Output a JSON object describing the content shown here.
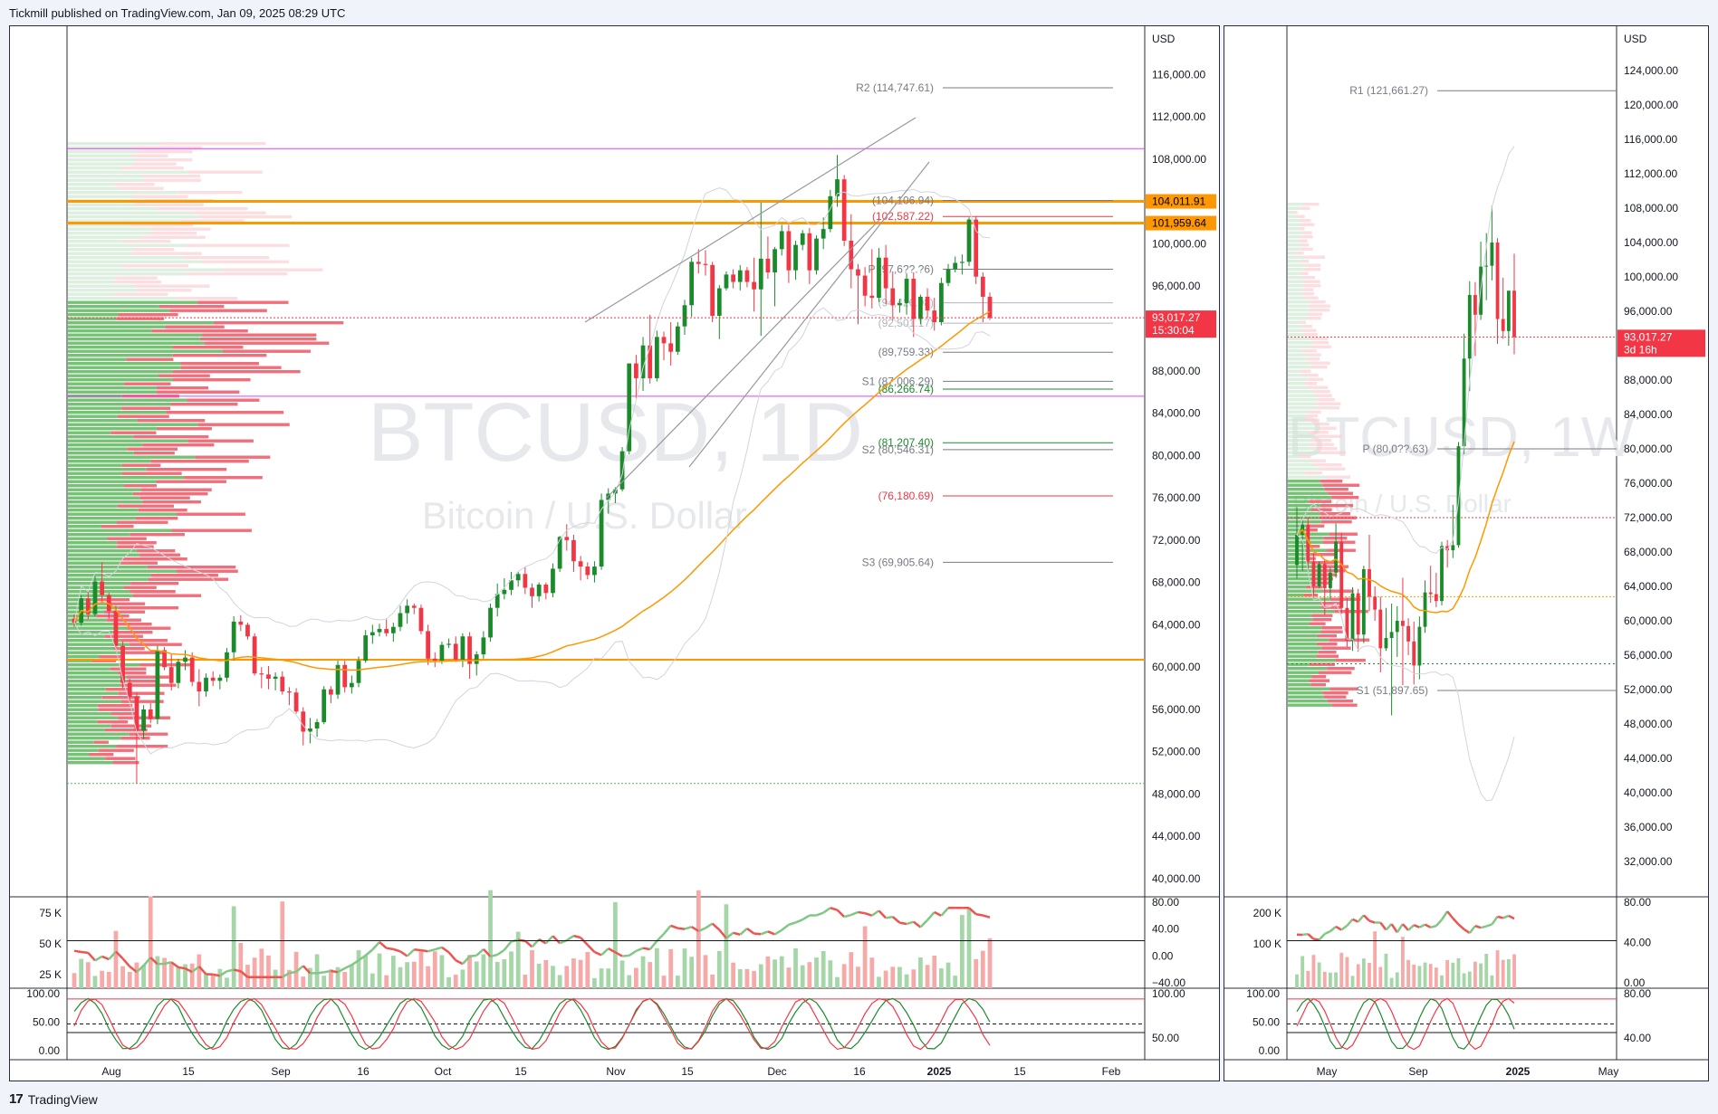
{
  "header": {
    "published": "Tickmill published on TradingView.com, Jan 09, 2025 08:29 UTC"
  },
  "footer": {
    "brand": "TradingView",
    "logo_glyph": "17"
  },
  "colors": {
    "up": "#26a69a",
    "green_candle": "#1b8a2b",
    "down": "#f23645",
    "orange": "#ff9800",
    "pivot_gray": "#787b86",
    "magenta": "#e040fb"
  },
  "chart_data": [
    {
      "type": "candlestick",
      "symbol": "BTCUSD, 1D",
      "name": "Bitcoin / U.S. Dollar",
      "currency": "USD",
      "ylim": [
        40000,
        118000
      ],
      "y_ticks": [
        "40,000.00",
        "44,000.00",
        "48,000.00",
        "52,000.00",
        "56,000.00",
        "60,000.00",
        "64,000.00",
        "68,000.00",
        "72,000.00",
        "76,000.00",
        "80,000.00",
        "84,000.00",
        "88,000.00",
        "92,000.00",
        "96,000.00",
        "100,000.00",
        "104,000.00",
        "108,000.00",
        "112,000.00",
        "116,000.00"
      ],
      "x_ticks": [
        "Aug",
        "15",
        "Sep",
        "16",
        "Oct",
        "15",
        "Nov",
        "15",
        "Dec",
        "16",
        "2025",
        "15",
        "Feb"
      ],
      "x_tick_bold": "2025",
      "pivot_levels": [
        {
          "label": "R2 (114,747.61)",
          "value": 114747.61,
          "color": "#787b86"
        },
        {
          "label": "(104,106.94)",
          "value": 104106.94,
          "color": "#787b86"
        },
        {
          "label": "(102,587.22)",
          "value": 102587.22,
          "color": "#f23645"
        },
        {
          "label": "P (97,6??.?6)",
          "value": 97600,
          "color": "#787b86"
        },
        {
          "label": "(94,426.98)",
          "value": 94426.98,
          "color": "#b2b5be"
        },
        {
          "label": "(92,501.17)",
          "value": 92501.17,
          "color": "#b2b5be"
        },
        {
          "label": "(89,759.33)",
          "value": 89759.33,
          "color": "#787b86"
        },
        {
          "label": "S1 (87,006.29)",
          "value": 87006.29,
          "color": "#787b86"
        },
        {
          "label": "(86,266.74)",
          "value": 86266.74,
          "color": "#1b8a2b"
        },
        {
          "label": "(81,207.40)",
          "value": 81207.4,
          "color": "#1b8a2b"
        },
        {
          "label": "S2 (80,546.31)",
          "value": 80546.31,
          "color": "#787b86"
        },
        {
          "label": "(76,180.69)",
          "value": 76180.69,
          "color": "#f23645"
        },
        {
          "label": "S3 (69,905.64)",
          "value": 69905.64,
          "color": "#787b86"
        }
      ],
      "price_badges": [
        {
          "text": "104,011.91",
          "value": 104011.91,
          "bg": "#ff9800",
          "fg": "#000000"
        },
        {
          "text": "101,959.64",
          "value": 101959.64,
          "bg": "#ff9800",
          "fg": "#000000"
        },
        {
          "text": "93,017.27",
          "sub": "15:30:04",
          "value": 93017.27,
          "bg": "#f23645",
          "fg": "#ffffff"
        }
      ],
      "candles": [
        [
          64.6,
          65.0,
          63.8,
          64.2
        ],
        [
          64.2,
          66.8,
          63.9,
          66.5
        ],
        [
          66.5,
          67.2,
          64.5,
          65.0
        ],
        [
          65.0,
          68.6,
          64.8,
          68.1
        ],
        [
          68.1,
          69.9,
          66.2,
          66.8
        ],
        [
          66.8,
          67.0,
          64.6,
          65.3
        ],
        [
          65.3,
          65.8,
          61.7,
          62.0
        ],
        [
          62.0,
          62.4,
          58.0,
          58.5
        ],
        [
          58.5,
          58.9,
          56.8,
          57.2
        ],
        [
          57.2,
          57.6,
          49.0,
          54.0
        ],
        [
          54.0,
          56.4,
          53.2,
          56.0
        ],
        [
          56.0,
          56.6,
          54.7,
          55.1
        ],
        [
          55.1,
          62.0,
          54.6,
          61.6
        ],
        [
          61.6,
          61.9,
          59.7,
          60.0
        ],
        [
          60.0,
          61.2,
          57.8,
          58.5
        ],
        [
          58.5,
          60.8,
          58.0,
          60.5
        ],
        [
          60.5,
          61.6,
          59.7,
          60.9
        ],
        [
          60.9,
          61.4,
          58.2,
          58.6
        ],
        [
          58.6,
          59.8,
          56.3,
          57.7
        ],
        [
          57.7,
          59.4,
          57.2,
          59.0
        ],
        [
          59.0,
          59.6,
          58.2,
          58.7
        ],
        [
          58.7,
          59.3,
          57.9,
          59.0
        ],
        [
          59.0,
          61.8,
          58.6,
          61.4
        ],
        [
          61.4,
          64.8,
          60.6,
          64.3
        ],
        [
          64.3,
          64.9,
          63.4,
          64.0
        ],
        [
          64.0,
          64.2,
          62.6,
          62.9
        ],
        [
          62.9,
          63.2,
          59.2,
          59.4
        ],
        [
          59.4,
          60.0,
          58.0,
          59.3
        ],
        [
          59.3,
          60.1,
          57.9,
          58.9
        ],
        [
          58.9,
          59.5,
          57.8,
          59.1
        ],
        [
          59.1,
          59.6,
          57.4,
          57.7
        ],
        [
          57.7,
          58.1,
          56.4,
          57.6
        ],
        [
          57.6,
          58.0,
          55.6,
          55.8
        ],
        [
          55.8,
          56.2,
          52.6,
          53.9
        ],
        [
          53.9,
          55.2,
          52.8,
          54.2
        ],
        [
          54.2,
          55.1,
          53.4,
          54.8
        ],
        [
          54.8,
          58.2,
          54.6,
          57.9
        ],
        [
          57.9,
          58.2,
          56.6,
          57.4
        ],
        [
          57.4,
          60.6,
          57.0,
          60.2
        ],
        [
          60.2,
          60.6,
          57.6,
          58.1
        ],
        [
          58.1,
          59.2,
          57.5,
          58.5
        ],
        [
          58.5,
          61.0,
          58.1,
          60.6
        ],
        [
          60.6,
          63.5,
          60.4,
          63.0
        ],
        [
          63.0,
          64.0,
          62.2,
          63.3
        ],
        [
          63.3,
          64.1,
          62.9,
          63.6
        ],
        [
          63.6,
          64.6,
          62.9,
          63.2
        ],
        [
          63.2,
          64.2,
          62.4,
          63.8
        ],
        [
          63.8,
          65.8,
          63.4,
          65.1
        ],
        [
          65.1,
          66.4,
          64.1,
          65.8
        ],
        [
          65.8,
          66.0,
          65.0,
          65.6
        ],
        [
          65.6,
          65.9,
          63.1,
          63.4
        ],
        [
          63.4,
          64.0,
          60.2,
          60.8
        ],
        [
          60.8,
          61.4,
          60.0,
          60.6
        ],
        [
          60.6,
          62.4,
          60.3,
          62.1
        ],
        [
          62.1,
          62.7,
          61.8,
          62.2
        ],
        [
          62.2,
          62.9,
          60.5,
          60.7
        ],
        [
          60.7,
          63.2,
          60.0,
          62.9
        ],
        [
          62.9,
          63.3,
          58.9,
          60.3
        ],
        [
          60.3,
          61.5,
          59.2,
          61.2
        ],
        [
          61.2,
          63.4,
          60.8,
          62.8
        ],
        [
          62.8,
          66.0,
          62.4,
          65.6
        ],
        [
          65.6,
          67.9,
          64.8,
          66.9
        ],
        [
          66.9,
          68.4,
          66.4,
          67.3
        ],
        [
          67.3,
          69.0,
          66.8,
          68.2
        ],
        [
          68.2,
          69.0,
          67.6,
          68.8
        ],
        [
          68.8,
          69.5,
          66.9,
          67.5
        ],
        [
          67.5,
          67.9,
          65.6,
          66.7
        ],
        [
          66.7,
          68.0,
          66.2,
          67.8
        ],
        [
          67.8,
          68.0,
          66.4,
          67.0
        ],
        [
          67.0,
          69.8,
          66.6,
          69.3
        ],
        [
          69.3,
          72.4,
          69.0,
          72.3
        ],
        [
          72.3,
          73.5,
          71.0,
          72.0
        ],
        [
          72.0,
          72.5,
          69.0,
          70.0
        ],
        [
          70.0,
          70.5,
          68.2,
          69.5
        ],
        [
          69.5,
          69.9,
          68.3,
          68.7
        ],
        [
          68.7,
          70.0,
          68.0,
          69.5
        ],
        [
          69.5,
          76.4,
          69.2,
          75.8
        ],
        [
          75.8,
          76.9,
          74.5,
          76.4
        ],
        [
          76.4,
          77.0,
          75.5,
          76.8
        ],
        [
          76.8,
          80.8,
          76.6,
          80.4
        ],
        [
          80.4,
          88.5,
          80.1,
          88.7
        ],
        [
          88.7,
          89.5,
          85.4,
          87.3
        ],
        [
          87.3,
          91.2,
          86.1,
          90.4
        ],
        [
          90.4,
          93.3,
          86.8,
          87.3
        ],
        [
          87.3,
          91.8,
          87.0,
          91.2
        ],
        [
          91.2,
          91.7,
          89.0,
          90.6
        ],
        [
          90.6,
          92.6,
          88.5,
          89.8
        ],
        [
          89.8,
          92.6,
          89.5,
          92.2
        ],
        [
          92.2,
          94.7,
          91.4,
          94.2
        ],
        [
          94.2,
          98.7,
          93.1,
          98.3
        ],
        [
          98.3,
          99.5,
          97.2,
          98.1
        ],
        [
          98.1,
          99.4,
          97.0,
          98.0
        ],
        [
          98.0,
          98.3,
          92.6,
          93.2
        ],
        [
          93.2,
          96.1,
          91.0,
          95.8
        ],
        [
          95.8,
          97.4,
          95.6,
          97.1
        ],
        [
          97.1,
          97.6,
          95.8,
          96.4
        ],
        [
          96.4,
          98.0,
          95.6,
          97.5
        ],
        [
          97.5,
          97.8,
          95.9,
          96.4
        ],
        [
          96.4,
          98.7,
          93.6,
          95.7
        ],
        [
          95.7,
          103.9,
          91.3,
          98.6
        ],
        [
          98.6,
          100.7,
          96.7,
          97.3
        ],
        [
          97.3,
          99.7,
          94.1,
          99.5
        ],
        [
          99.5,
          101.8,
          98.9,
          101.2
        ],
        [
          101.2,
          101.8,
          96.3,
          97.5
        ],
        [
          97.5,
          100.3,
          96.6,
          99.9
        ],
        [
          99.9,
          101.3,
          99.4,
          101.0
        ],
        [
          101.0,
          101.5,
          96.2,
          97.5
        ],
        [
          97.5,
          100.8,
          97.1,
          100.5
        ],
        [
          100.5,
          102.5,
          99.5,
          101.4
        ],
        [
          101.4,
          105.1,
          101.1,
          104.5
        ],
        [
          104.5,
          108.4,
          103.5,
          106.1
        ],
        [
          106.1,
          106.5,
          99.8,
          100.3
        ],
        [
          100.3,
          102.8,
          95.8,
          97.6
        ],
        [
          97.6,
          98.1,
          92.4,
          97.0
        ],
        [
          97.0,
          97.8,
          94.1,
          95.1
        ],
        [
          95.1,
          99.5,
          93.9,
          94.9
        ],
        [
          94.9,
          99.6,
          94.5,
          98.7
        ],
        [
          98.7,
          99.9,
          94.3,
          95.8
        ],
        [
          95.8,
          97.4,
          92.8,
          94.2
        ],
        [
          94.2,
          94.8,
          93.5,
          94.4
        ],
        [
          94.4,
          97.2,
          93.3,
          96.7
        ],
        [
          96.7,
          97.3,
          91.2,
          92.9
        ],
        [
          92.9,
          95.2,
          92.4,
          95.0
        ],
        [
          95.0,
          95.8,
          93.0,
          93.7
        ],
        [
          93.7,
          94.9,
          91.8,
          92.6
        ],
        [
          92.6,
          96.8,
          92.3,
          96.3
        ],
        [
          96.3,
          98.1,
          96.0,
          97.6
        ],
        [
          97.6,
          98.8,
          97.3,
          98.2
        ],
        [
          98.2,
          99.0,
          97.1,
          98.3
        ],
        [
          98.3,
          102.5,
          97.9,
          102.3
        ],
        [
          102.3,
          102.6,
          96.2,
          96.9
        ],
        [
          96.9,
          97.3,
          92.6,
          95.0
        ],
        [
          95.0,
          95.4,
          92.8,
          93.0
        ]
      ],
      "volume_axis": [
        "75 K",
        "50 K",
        "25 K"
      ],
      "rsi_axis": [
        "80.00",
        "40.00",
        "0.00",
        "−40.00"
      ],
      "stoch_axis": [
        "100.00",
        "50.00",
        "0.00"
      ],
      "stoch_right_axis": [
        "100.00",
        "50.00"
      ]
    },
    {
      "type": "candlestick",
      "symbol": "BTCUSD, 1W",
      "name": "Bitcoin / U.S. Dollar",
      "currency": "USD",
      "ylim": [
        30000,
        126000
      ],
      "y_ticks": [
        "32,000.00",
        "36,000.00",
        "40,000.00",
        "44,000.00",
        "48,000.00",
        "52,000.00",
        "56,000.00",
        "60,000.00",
        "64,000.00",
        "68,000.00",
        "72,000.00",
        "76,000.00",
        "80,000.00",
        "84,000.00",
        "88,000.00",
        "92,000.00",
        "96,000.00",
        "100,000.00",
        "104,000.00",
        "108,000.00",
        "112,000.00",
        "116,000.00",
        "120,000.00",
        "124,000.00"
      ],
      "x_ticks": [
        "May",
        "Sep",
        "2025",
        "May"
      ],
      "x_tick_bold": "2025",
      "pivot_levels": [
        {
          "label": "R1 (121,661.27)",
          "value": 121661.27,
          "color": "#787b86"
        },
        {
          "label": "P (80,0??.63)",
          "value": 80000,
          "color": "#787b86"
        },
        {
          "label": "S1 (51,897.65)",
          "value": 51897.65,
          "color": "#787b86"
        }
      ],
      "price_badges": [
        {
          "text": "93,017.27",
          "sub": "3d 16h",
          "value": 93017.27,
          "bg": "#f23645",
          "fg": "#ffffff"
        }
      ],
      "candles": [
        [
          66.5,
          73.2,
          64.9,
          70.0
        ],
        [
          70.0,
          71.9,
          65.8,
          71.2
        ],
        [
          71.2,
          72.0,
          66.0,
          66.9
        ],
        [
          66.9,
          67.8,
          62.4,
          64.0
        ],
        [
          64.0,
          66.9,
          63.8,
          66.6
        ],
        [
          66.6,
          67.1,
          60.7,
          63.8
        ],
        [
          63.8,
          66.2,
          62.6,
          65.6
        ],
        [
          65.6,
          71.3,
          65.0,
          69.2
        ],
        [
          69.2,
          70.2,
          60.8,
          61.5
        ],
        [
          61.5,
          62.7,
          57.0,
          57.7
        ],
        [
          57.7,
          63.9,
          56.5,
          63.2
        ],
        [
          63.2,
          63.7,
          56.4,
          58.4
        ],
        [
          58.4,
          66.4,
          57.4,
          66.0
        ],
        [
          66.0,
          70.0,
          61.1,
          62.8
        ],
        [
          62.8,
          64.0,
          60.0,
          61.3
        ],
        [
          61.3,
          62.8,
          54.0,
          56.8
        ],
        [
          56.8,
          61.5,
          56.5,
          58.0
        ],
        [
          58.0,
          62.0,
          49.0,
          58.7
        ],
        [
          58.7,
          61.7,
          55.8,
          60.0
        ],
        [
          60.0,
          65.0,
          52.5,
          59.4
        ],
        [
          59.4,
          60.3,
          56.0,
          57.6
        ],
        [
          57.6,
          59.9,
          52.6,
          54.8
        ],
        [
          54.8,
          60.5,
          53.2,
          59.3
        ],
        [
          59.3,
          64.7,
          58.6,
          63.3
        ],
        [
          63.3,
          66.4,
          62.1,
          63.1
        ],
        [
          63.1,
          65.6,
          61.6,
          62.3
        ],
        [
          62.3,
          69.2,
          61.8,
          68.7
        ],
        [
          68.7,
          69.4,
          66.2,
          68.2
        ],
        [
          68.2,
          73.5,
          67.3,
          68.8
        ],
        [
          68.8,
          80.8,
          68.5,
          80.3
        ],
        [
          80.3,
          93.4,
          79.4,
          90.5
        ],
        [
          90.5,
          99.5,
          86.7,
          97.9
        ],
        [
          97.9,
          99.4,
          90.8,
          95.6
        ],
        [
          95.6,
          104.1,
          95.0,
          101.2
        ],
        [
          101.2,
          105.1,
          97.3,
          101.3
        ],
        [
          101.3,
          108.3,
          99.6,
          104.0
        ],
        [
          104.0,
          104.5,
          92.2,
          95.1
        ],
        [
          95.1,
          99.9,
          92.8,
          93.7
        ],
        [
          93.7,
          98.3,
          92.0,
          98.4
        ],
        [
          98.4,
          102.7,
          91.0,
          93.0
        ]
      ],
      "volume_axis": [
        "200 K",
        "100 K"
      ],
      "rsi_axis": [
        "80.00",
        "40.00",
        "0.00"
      ],
      "stoch_axis": [
        "100.00",
        "50.00",
        "0.00"
      ],
      "stoch_right_axis": [
        "80.00",
        "40.00"
      ]
    }
  ]
}
